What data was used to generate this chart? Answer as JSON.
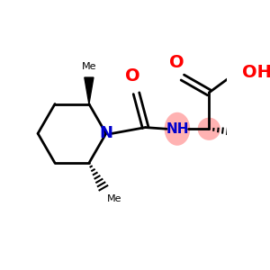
{
  "background_color": "#ffffff",
  "bond_color": "#000000",
  "N_color": "#0000cc",
  "O_color": "#ff0000",
  "NH_highlight_color": "#ff9999",
  "CH_highlight_color": "#ff9999",
  "figsize": [
    3.0,
    3.0
  ],
  "dpi": 100,
  "xlim": [
    0,
    300
  ],
  "ylim": [
    0,
    300
  ]
}
